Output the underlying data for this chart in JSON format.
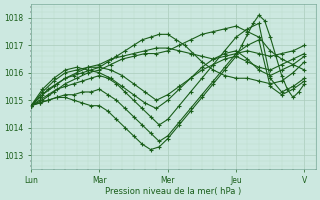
{
  "xlabel": "Pression niveau de la mer( hPa )",
  "ylim": [
    1012.5,
    1018.5
  ],
  "yticks": [
    1013,
    1014,
    1015,
    1016,
    1017,
    1018
  ],
  "day_labels": [
    "Lun",
    "Mar",
    "Mer",
    "Jeu",
    "V"
  ],
  "day_positions": [
    0,
    24,
    48,
    72,
    96
  ],
  "xlim": [
    0,
    100
  ],
  "bg_color": "#cce8e0",
  "grid_major_color": "#aaccbb",
  "grid_minor_color": "#bbddcc",
  "line_color": "#1a5e1a",
  "line_width": 0.8,
  "marker_size": 2.5,
  "lines": [
    {
      "x": [
        0,
        4,
        8,
        12,
        16,
        20,
        24,
        28,
        32,
        36,
        40,
        44,
        48,
        52,
        56,
        60,
        64,
        68,
        72,
        76,
        80,
        84,
        88,
        92,
        96
      ],
      "y": [
        1014.8,
        1015.2,
        1015.5,
        1015.8,
        1016.0,
        1016.2,
        1016.3,
        1016.5,
        1016.6,
        1016.7,
        1016.8,
        1016.9,
        1016.9,
        1016.8,
        1016.7,
        1016.6,
        1016.5,
        1016.6,
        1016.7,
        1016.8,
        1016.7,
        1016.6,
        1016.7,
        1016.8,
        1017.0
      ]
    },
    {
      "x": [
        0,
        4,
        8,
        12,
        16,
        20,
        24,
        28,
        32,
        36,
        40,
        44,
        48,
        52,
        56,
        60,
        64,
        68,
        72,
        76,
        80,
        84,
        88,
        92,
        96
      ],
      "y": [
        1014.8,
        1015.0,
        1015.3,
        1015.6,
        1015.8,
        1016.0,
        1016.1,
        1016.3,
        1016.5,
        1016.6,
        1016.7,
        1016.7,
        1016.8,
        1017.0,
        1017.2,
        1017.4,
        1017.5,
        1017.6,
        1017.7,
        1017.5,
        1017.3,
        1016.8,
        1016.5,
        1016.3,
        1016.1
      ]
    },
    {
      "x": [
        0,
        3,
        6,
        9,
        12,
        15,
        18,
        21,
        24,
        27,
        30,
        33,
        36,
        39,
        42,
        45,
        48,
        51,
        54,
        57,
        60,
        64,
        68,
        72,
        76,
        80,
        84,
        88,
        92,
        96
      ],
      "y": [
        1014.8,
        1015.1,
        1015.4,
        1015.6,
        1015.8,
        1015.9,
        1016.0,
        1016.1,
        1016.2,
        1016.4,
        1016.6,
        1016.8,
        1017.0,
        1017.2,
        1017.3,
        1017.4,
        1017.4,
        1017.2,
        1017.0,
        1016.7,
        1016.4,
        1016.1,
        1015.9,
        1015.8,
        1015.8,
        1015.7,
        1015.6,
        1015.7,
        1016.0,
        1016.4
      ]
    },
    {
      "x": [
        0,
        3,
        6,
        9,
        12,
        15,
        18,
        21,
        24,
        27,
        30,
        33,
        36,
        39,
        42,
        45,
        48,
        52,
        56,
        60,
        64,
        68,
        72,
        76,
        80,
        84,
        88,
        92,
        96
      ],
      "y": [
        1014.8,
        1015.0,
        1015.2,
        1015.4,
        1015.5,
        1015.6,
        1015.7,
        1015.8,
        1015.9,
        1015.8,
        1015.6,
        1015.3,
        1015.0,
        1014.7,
        1014.4,
        1014.1,
        1014.3,
        1014.8,
        1015.3,
        1015.8,
        1016.3,
        1016.8,
        1017.3,
        1017.6,
        1017.8,
        1015.8,
        1015.3,
        1015.5,
        1015.8
      ]
    },
    {
      "x": [
        0,
        3,
        6,
        9,
        12,
        15,
        18,
        21,
        24,
        27,
        30,
        33,
        36,
        39,
        42,
        45,
        48,
        52,
        56,
        60,
        64,
        68,
        72,
        76,
        80,
        84,
        88,
        92,
        96
      ],
      "y": [
        1014.8,
        1014.9,
        1015.0,
        1015.1,
        1015.2,
        1015.2,
        1015.3,
        1015.3,
        1015.4,
        1015.2,
        1015.0,
        1014.7,
        1014.4,
        1014.1,
        1013.8,
        1013.5,
        1013.7,
        1014.2,
        1014.7,
        1015.2,
        1015.7,
        1016.2,
        1016.7,
        1017.0,
        1017.2,
        1015.5,
        1015.2,
        1015.4,
        1015.7
      ]
    },
    {
      "x": [
        0,
        3,
        6,
        9,
        12,
        15,
        18,
        21,
        24,
        27,
        30,
        33,
        36,
        39,
        42,
        45,
        48,
        52,
        56,
        60,
        64,
        68,
        72,
        74,
        76,
        78,
        80,
        82,
        84,
        86,
        88,
        90,
        92,
        94,
        96
      ],
      "y": [
        1014.8,
        1014.9,
        1015.0,
        1015.1,
        1015.1,
        1015.0,
        1014.9,
        1014.8,
        1014.8,
        1014.6,
        1014.3,
        1014.0,
        1013.7,
        1013.4,
        1013.2,
        1013.3,
        1013.6,
        1014.1,
        1014.6,
        1015.1,
        1015.6,
        1016.1,
        1016.6,
        1017.0,
        1017.4,
        1017.8,
        1018.1,
        1017.9,
        1017.3,
        1016.6,
        1015.9,
        1015.4,
        1015.1,
        1015.3,
        1015.6
      ]
    },
    {
      "x": [
        0,
        4,
        8,
        12,
        16,
        20,
        24,
        28,
        32,
        36,
        40,
        44,
        48,
        52,
        56,
        60,
        64,
        68,
        72,
        76,
        80,
        84,
        88,
        92,
        96
      ],
      "y": [
        1014.8,
        1015.3,
        1015.7,
        1016.0,
        1016.1,
        1016.2,
        1016.2,
        1016.1,
        1015.9,
        1015.6,
        1015.3,
        1015.0,
        1015.2,
        1015.5,
        1015.8,
        1016.1,
        1016.3,
        1016.5,
        1016.6,
        1016.4,
        1016.2,
        1016.1,
        1016.3,
        1016.5,
        1016.7
      ]
    },
    {
      "x": [
        0,
        4,
        8,
        12,
        16,
        20,
        24,
        28,
        32,
        36,
        40,
        44,
        48,
        52,
        56,
        60,
        64,
        68,
        72,
        76,
        80,
        84,
        88,
        92,
        96
      ],
      "y": [
        1014.8,
        1015.4,
        1015.8,
        1016.1,
        1016.2,
        1016.1,
        1016.0,
        1015.8,
        1015.5,
        1015.2,
        1014.9,
        1014.7,
        1015.0,
        1015.4,
        1015.8,
        1016.2,
        1016.5,
        1016.7,
        1016.8,
        1016.5,
        1016.1,
        1015.9,
        1016.1,
        1016.3,
        1016.6
      ]
    }
  ]
}
